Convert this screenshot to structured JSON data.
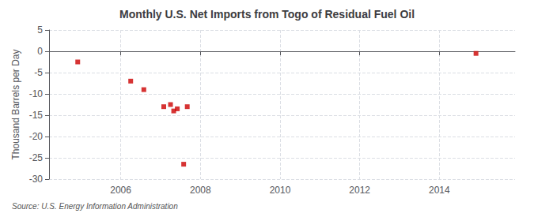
{
  "chart_data": {
    "type": "scatter",
    "title": "Monthly U.S. Net Imports from Togo of Residual Fuel Oil",
    "ylabel": "Thousand Barrels per Day",
    "source": "Source: U.S. Energy Information Administration",
    "x": [
      2004.92,
      2006.25,
      2006.58,
      2007.08,
      2007.25,
      2007.33,
      2007.42,
      2007.58,
      2007.67,
      2014.92
    ],
    "values": [
      -2.5,
      -7.0,
      -9.0,
      -13.0,
      -12.5,
      -14.0,
      -13.5,
      -26.5,
      -13.0,
      -0.5
    ],
    "color": "#cc0000",
    "marker": "square",
    "xlim": [
      2004.2,
      2015.9
    ],
    "xticks": [
      2006,
      2008,
      2010,
      2012,
      2014
    ],
    "ylim": [
      -30,
      5
    ],
    "yticks": [
      5,
      0,
      -5,
      -10,
      -15,
      -20,
      -25,
      -30
    ],
    "grid": true
  }
}
